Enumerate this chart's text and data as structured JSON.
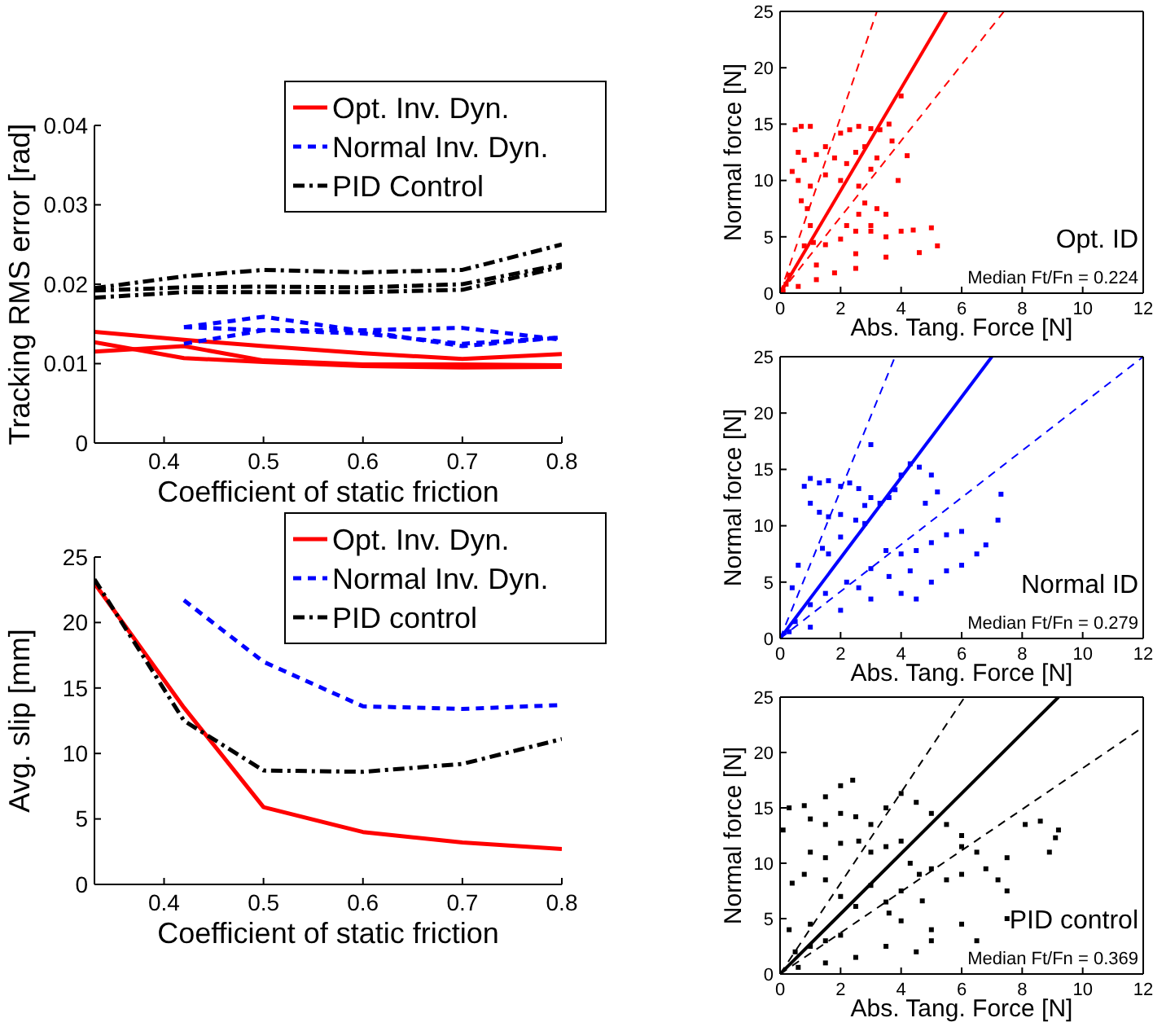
{
  "chart_data": [
    {
      "type": "line",
      "xlabel": "Coefficient of static friction",
      "ylabel": "Tracking RMS error [rad]",
      "x": [
        0.33,
        0.42,
        0.5,
        0.6,
        0.7,
        0.8
      ],
      "xlim": [
        0.33,
        0.8
      ],
      "xticks": [
        0.4,
        0.5,
        0.6,
        0.7,
        0.8
      ],
      "ylim": [
        0,
        0.04
      ],
      "yticks": [
        0,
        0.01,
        0.02,
        0.03,
        0.04
      ],
      "legend": "top right",
      "series": [
        {
          "name": "Opt. Inv. Dyn.",
          "color": "#ff0000",
          "line_style": "solid",
          "values": [
            0.014,
            0.013,
            0.0122,
            0.0113,
            0.0106,
            0.0112
          ]
        },
        {
          "name": "Normal Inv. Dyn.",
          "color": "#0000ff",
          "line_style": "dashed",
          "x": [
            0.42,
            0.5,
            0.6,
            0.7,
            0.8
          ],
          "values": [
            0.0146,
            0.0159,
            0.0141,
            0.0122,
            0.0133
          ]
        },
        {
          "name": "PID Control",
          "color": "#000000",
          "line_style": "dashdot",
          "values": [
            0.0195,
            0.021,
            0.0218,
            0.0215,
            0.0218,
            0.025
          ]
        },
        {
          "color": "#ff0000",
          "line_style": "solid",
          "values": [
            0.0127,
            0.0107,
            0.0102,
            0.0097,
            0.0095,
            0.0096
          ]
        },
        {
          "color": "#ff0000",
          "line_style": "solid",
          "values": [
            0.0115,
            0.0122,
            0.0104,
            0.0099,
            0.0099,
            0.0098
          ]
        },
        {
          "color": "#0000ff",
          "line_style": "dashed",
          "x": [
            0.42,
            0.5,
            0.6,
            0.7,
            0.8
          ],
          "values": [
            0.0125,
            0.0142,
            0.0142,
            0.0145,
            0.013
          ]
        },
        {
          "color": "#0000ff",
          "line_style": "dashed",
          "x": [
            0.42,
            0.5,
            0.6,
            0.7,
            0.8
          ],
          "values": [
            0.0146,
            0.0142,
            0.0138,
            0.0125,
            0.0133
          ]
        },
        {
          "color": "#000000",
          "line_style": "dashdot",
          "values": [
            0.0192,
            0.0196,
            0.0197,
            0.0196,
            0.02,
            0.0225
          ]
        },
        {
          "color": "#000000",
          "line_style": "dashdot",
          "values": [
            0.0183,
            0.019,
            0.019,
            0.019,
            0.0193,
            0.0222
          ]
        }
      ]
    },
    {
      "type": "line",
      "xlabel": "Coefficient of static friction",
      "ylabel": "Avg. slip [mm]",
      "x": [
        0.33,
        0.42,
        0.5,
        0.6,
        0.7,
        0.8
      ],
      "xlim": [
        0.33,
        0.8
      ],
      "xticks": [
        0.4,
        0.5,
        0.6,
        0.7,
        0.8
      ],
      "ylim": [
        0,
        25
      ],
      "yticks": [
        0,
        5,
        10,
        15,
        20,
        25
      ],
      "legend": "top right",
      "series": [
        {
          "name": "Opt. Inv. Dyn.",
          "color": "#ff0000",
          "line_style": "solid",
          "values": [
            23,
            13.5,
            5.9,
            4.0,
            3.2,
            2.7
          ]
        },
        {
          "name": "Normal Inv. Dyn.",
          "color": "#0000ff",
          "line_style": "dashed",
          "x": [
            0.42,
            0.5,
            0.6,
            0.7,
            0.8
          ],
          "values": [
            21.7,
            17,
            13.6,
            13.4,
            13.7
          ]
        },
        {
          "name": "PID control",
          "color": "#000000",
          "line_style": "dashdot",
          "values": [
            23.3,
            12.5,
            8.7,
            8.6,
            9.2,
            11.1
          ]
        }
      ]
    },
    {
      "type": "scatter",
      "xlabel": "Abs. Tang. Force [N]",
      "ylabel": "Normal force [N]",
      "xlim": [
        0,
        12
      ],
      "xticks": [
        0,
        2,
        4,
        6,
        8,
        10,
        12
      ],
      "ylim": [
        0,
        25
      ],
      "yticks": [
        0,
        5,
        10,
        15,
        20,
        25
      ],
      "annotations": [
        "Opt. ID",
        "Median Ft/Fn = 0.224"
      ],
      "series": [
        {
          "color": "#ff0000",
          "marker": "square",
          "x": [
            0.5,
            0.7,
            1,
            0.6,
            0.8,
            1.2,
            1.5,
            1.8,
            2,
            2.3,
            2.6,
            3,
            3.3,
            3.6,
            3.7,
            2.8,
            2.5,
            2.2,
            3,
            3.2,
            0.4,
            0.6,
            1,
            1.5,
            2,
            2.6,
            2.8,
            3.2,
            3.5,
            3,
            2.6,
            2.2,
            0.7,
            0.9,
            1,
            1.1,
            0.8,
            1.5,
            2,
            2.5,
            3,
            3.5,
            4,
            4.4,
            5,
            5.2,
            4.6,
            3.5,
            2.5,
            1.8,
            1.2,
            0.6,
            0.2,
            0.3,
            3.9,
            4.2,
            4,
            0.1,
            1.2,
            2.5
          ],
          "values": [
            14.5,
            14.8,
            14.8,
            12.5,
            11.8,
            12.3,
            13,
            12,
            14.2,
            14.5,
            14.8,
            14.6,
            14.5,
            15,
            13.5,
            13,
            12.5,
            11.5,
            11,
            12,
            10.8,
            10,
            9.5,
            10.5,
            10,
            9.5,
            8,
            7.5,
            7,
            6,
            7,
            6,
            8.2,
            7.5,
            6,
            4.5,
            4.2,
            4.3,
            4.8,
            5.5,
            5.5,
            5,
            5.5,
            5.6,
            5.8,
            4.2,
            3.6,
            3.2,
            2.2,
            1.8,
            1.2,
            0.6,
            0.8,
            1.6,
            10,
            12.2,
            17.5,
            0.2,
            2.5,
            3.5
          ]
        },
        {
          "type": "line",
          "color": "#ff0000",
          "line_style": "solid",
          "x": [
            0,
            5.5
          ],
          "values": [
            0,
            25
          ]
        },
        {
          "type": "line",
          "color": "#ff0000",
          "line_style": "dashed",
          "x": [
            0,
            3.2
          ],
          "values": [
            0,
            25
          ]
        },
        {
          "type": "line",
          "color": "#ff0000",
          "line_style": "dashed",
          "x": [
            0,
            7.4
          ],
          "values": [
            0,
            25
          ]
        }
      ]
    },
    {
      "type": "scatter",
      "xlabel": "Abs. Tang. Force [N]",
      "ylabel": "Normal force [N]",
      "xlim": [
        0,
        12
      ],
      "xticks": [
        0,
        2,
        4,
        6,
        8,
        10,
        12
      ],
      "ylim": [
        0,
        25
      ],
      "yticks": [
        0,
        5,
        10,
        15,
        20,
        25
      ],
      "annotations": [
        "Normal ID",
        "Median Ft/Fn = 0.279"
      ],
      "series": [
        {
          "color": "#0000ff",
          "marker": "square",
          "x": [
            0.8,
            1,
            1.3,
            1.6,
            2,
            2.3,
            2.6,
            1,
            1.3,
            1.6,
            2,
            2.5,
            2.8,
            3,
            3.3,
            3.6,
            3.8,
            4,
            4.3,
            4.6,
            5,
            5.2,
            4.8,
            3,
            2.8,
            1.4,
            1.6,
            2,
            3,
            2.2,
            1.5,
            1,
            0.6,
            0.4,
            0.5,
            0.3,
            1,
            2,
            3,
            4,
            4.5,
            5,
            5.5,
            6,
            6.5,
            6.8,
            7.2,
            7.3,
            6,
            5.5,
            5,
            4.5,
            4,
            3.5,
            4.3,
            3.6,
            2.6
          ],
          "values": [
            13.5,
            14.2,
            13.8,
            14,
            13.5,
            13.8,
            13.3,
            12,
            11.2,
            10.8,
            11,
            10.5,
            11.8,
            12.5,
            12,
            12.5,
            13.2,
            14.5,
            15.5,
            15.2,
            14.5,
            13,
            12,
            17.2,
            10.2,
            8,
            7.5,
            9,
            6.2,
            5,
            4,
            3,
            6.5,
            4.5,
            1.5,
            0.6,
            1,
            2.5,
            3.5,
            4,
            3.5,
            5,
            6,
            6.5,
            7.5,
            8.3,
            10.5,
            12.8,
            9.5,
            9.2,
            8.5,
            7.8,
            7.5,
            7.8,
            6,
            5.5,
            4.5
          ]
        },
        {
          "type": "line",
          "color": "#0000ff",
          "line_style": "solid",
          "x": [
            0,
            7
          ],
          "values": [
            0,
            25
          ]
        },
        {
          "type": "line",
          "color": "#0000ff",
          "line_style": "dashed",
          "x": [
            0,
            3.8
          ],
          "values": [
            0,
            25
          ]
        },
        {
          "type": "line",
          "color": "#0000ff",
          "line_style": "dashed",
          "x": [
            0,
            12
          ],
          "values": [
            0,
            25
          ]
        }
      ]
    },
    {
      "type": "scatter",
      "xlabel": "Abs. Tang. Force [N]",
      "ylabel": "Normal force [N]",
      "xlim": [
        0,
        12
      ],
      "xticks": [
        0,
        2,
        4,
        6,
        8,
        10,
        12
      ],
      "ylim": [
        0,
        25
      ],
      "yticks": [
        0,
        5,
        10,
        15,
        20,
        25
      ],
      "annotations": [
        "PID control",
        "Median Ft/Fn = 0.369"
      ],
      "series": [
        {
          "color": "#000000",
          "marker": "square",
          "x": [
            0.1,
            0.3,
            0.8,
            1.5,
            2,
            2.4,
            1,
            1.5,
            2,
            2.5,
            3,
            3.5,
            4,
            4.5,
            5,
            5.5,
            6,
            6.5,
            1,
            1.5,
            2,
            2.6,
            3,
            3.5,
            4,
            4.3,
            0.4,
            0.8,
            1.5,
            2,
            3,
            4,
            4.6,
            5,
            5.5,
            6,
            6.8,
            7.2,
            7.5,
            6,
            5,
            4,
            4.7,
            3.5,
            2.5,
            3.6,
            2,
            1.5,
            1,
            0.5,
            0.3,
            1,
            0.6,
            1.5,
            2.5,
            3.5,
            4.5,
            5,
            6.5,
            7.5,
            8.1,
            8.6,
            9.2,
            9.1,
            8.9,
            7.5,
            6
          ],
          "values": [
            13,
            15,
            15.2,
            16,
            17,
            17.5,
            14,
            13.5,
            14.5,
            14.2,
            13.5,
            15,
            16.3,
            15.5,
            14.5,
            13.5,
            12.5,
            11,
            11,
            10.5,
            11.8,
            12,
            11,
            11.5,
            12,
            10,
            8.2,
            9,
            8.5,
            7,
            8,
            7.5,
            9,
            9.5,
            8.5,
            9,
            9.5,
            8.5,
            7.5,
            4.5,
            4,
            4.8,
            6.6,
            6.5,
            6.1,
            5.5,
            3.5,
            3,
            2.5,
            2,
            4,
            4.5,
            0.6,
            1,
            1.5,
            2.5,
            2,
            3,
            3,
            5,
            13.5,
            13.8,
            13,
            12.3,
            11,
            10.5,
            11.5
          ]
        },
        {
          "type": "line",
          "color": "#000000",
          "line_style": "solid",
          "x": [
            0,
            9.2
          ],
          "values": [
            0,
            25
          ]
        },
        {
          "type": "line",
          "color": "#000000",
          "line_style": "dashed",
          "x": [
            0,
            6.1
          ],
          "values": [
            0,
            25
          ]
        },
        {
          "type": "line",
          "color": "#000000",
          "line_style": "dashed",
          "x": [
            0,
            12
          ],
          "values": [
            0,
            22.3
          ]
        }
      ]
    }
  ]
}
